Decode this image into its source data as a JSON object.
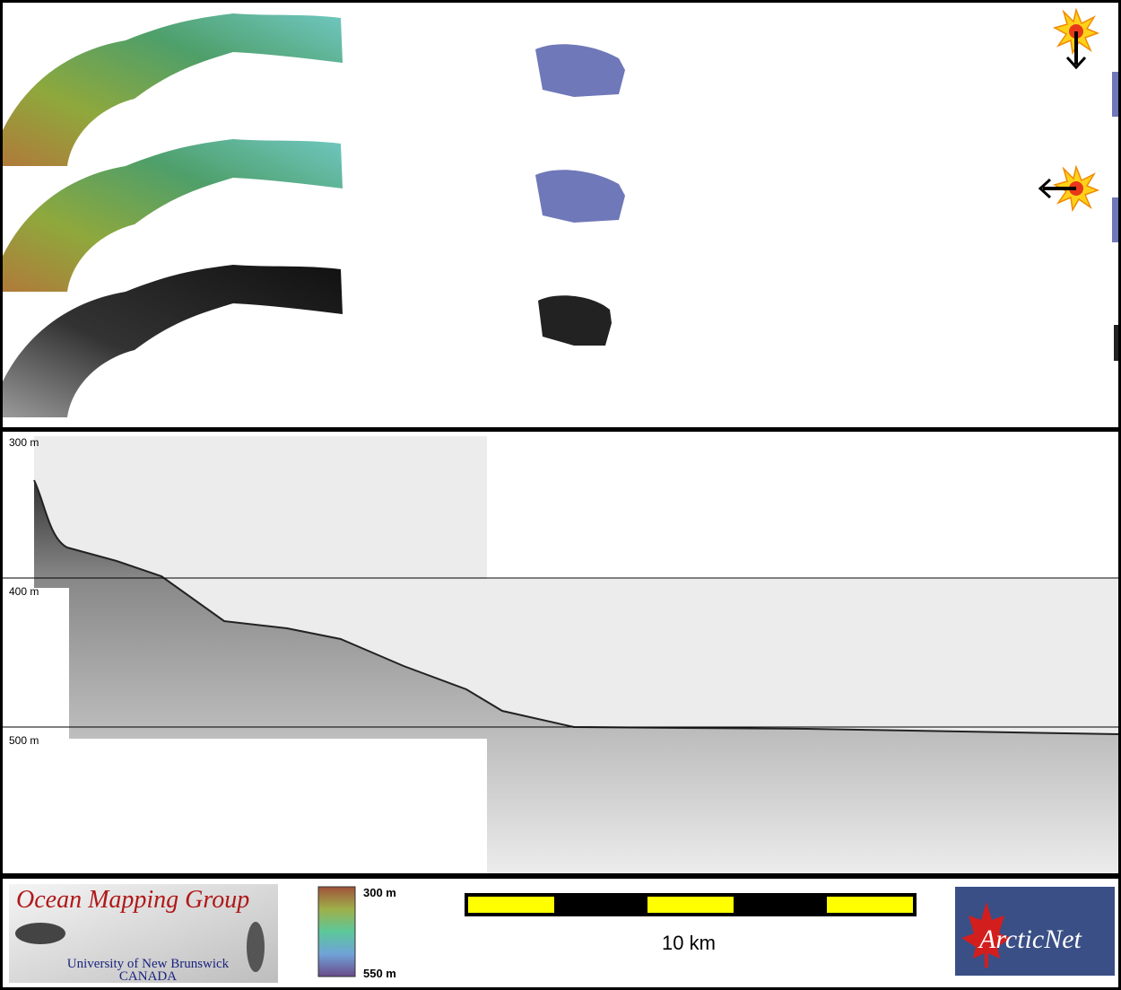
{
  "profile": {
    "depth_labels": [
      "300 m",
      "400 m",
      "500 m"
    ]
  },
  "footer": {
    "logo": {
      "title": "Ocean Mapping Group",
      "university": "University of New Brunswick",
      "country": "CANADA"
    },
    "colorbar": {
      "top_label": "300 m",
      "bottom_label": "550 m"
    },
    "scale_bar": {
      "label": "10 km"
    },
    "partner_logo": {
      "text": "ArcticNet"
    }
  }
}
